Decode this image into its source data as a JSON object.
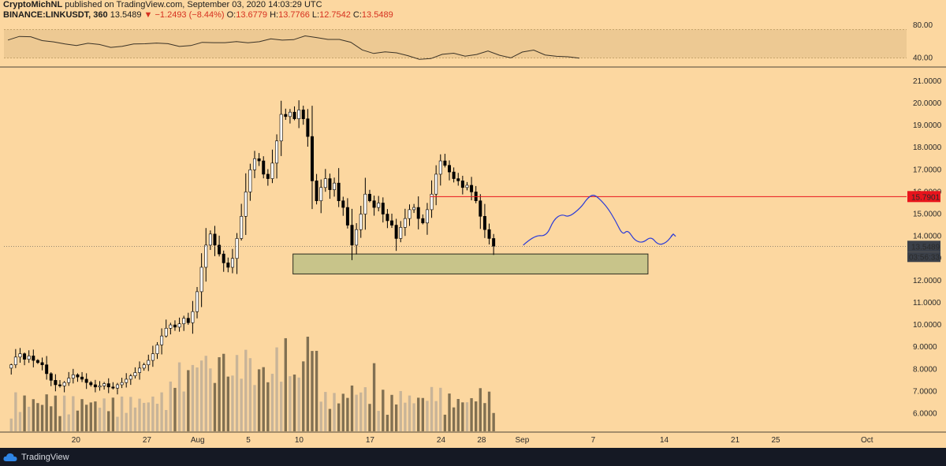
{
  "header": {
    "author": "CryptoMichNL",
    "published_text": "published on TradingView.com, September 03, 2020 14:03:29 UTC",
    "symbol": "BINANCE:LINKUSDT, 360",
    "last": "13.5489",
    "change_arrow": "▼",
    "change": "−1.2493 (−8.44%)",
    "o_label": "O:",
    "o_val": "13.6779",
    "h_label": "H:",
    "h_val": "13.7766",
    "l_label": "L:",
    "l_val": "12.7542",
    "c_label": "C:",
    "c_val": "13.5489"
  },
  "footer": {
    "brand": "TradingView"
  },
  "colors": {
    "background": "#fcd7a0",
    "bull": "#ffffff",
    "bear": "#000000",
    "resistance": "#e8141c",
    "projection": "#2a3ad8",
    "support_zone": "#c8c48a",
    "price_tag": "#3b4049",
    "resistance_tag": "#e8141c"
  },
  "chart_data": [
    {
      "type": "line",
      "name": "oscillator",
      "ylim": [
        30,
        85
      ],
      "tick_labels": [
        "80.00",
        "40.00"
      ],
      "tick_values": [
        80,
        40
      ],
      "band": [
        40,
        75
      ],
      "x": [
        0,
        3,
        6,
        9,
        12,
        15,
        18,
        21,
        24,
        27,
        30,
        33,
        36,
        39,
        42,
        45,
        48,
        51,
        54,
        57,
        60,
        63,
        66,
        69,
        72,
        75
      ],
      "values": [
        62,
        66,
        60,
        55,
        57,
        54,
        58,
        57,
        56,
        58,
        61,
        59,
        63,
        66,
        64,
        58,
        47,
        45,
        40,
        43,
        44,
        47,
        42,
        48,
        44,
        38
      ]
    },
    {
      "type": "candlestick",
      "ylim": [
        5.2,
        21.6
      ],
      "tick_labels": [
        "21.0000",
        "20.0000",
        "19.0000",
        "18.0000",
        "17.0000",
        "16.0000",
        "15.0000",
        "14.0000",
        "13.0000",
        "12.0000",
        "11.0000",
        "10.0000",
        "9.0000",
        "8.0000",
        "7.0000",
        "6.0000"
      ],
      "tick_values": [
        21,
        20,
        19,
        18,
        17,
        16,
        15,
        14,
        13,
        12,
        11,
        10,
        9,
        8,
        7,
        6
      ],
      "x_tick_labels": [
        "20",
        "27",
        "Aug",
        "5",
        "10",
        "17",
        "24",
        "28",
        "Sep",
        "7",
        "14",
        "21",
        "25",
        "Oct"
      ],
      "x_tick_positions": [
        1.6,
        8.6,
        13.6,
        18.6,
        23.6,
        30.6,
        37.6,
        41.6,
        45.6,
        52.6,
        59.6,
        66.6,
        70.6,
        79.6
      ],
      "x_range": [
        -5.5,
        83.5
      ],
      "close_series": [
        8.2,
        8.55,
        8.7,
        8.45,
        8.6,
        8.4,
        8.3,
        8.2,
        7.8,
        7.5,
        7.3,
        7.25,
        7.4,
        7.6,
        7.75,
        7.65,
        7.55,
        7.4,
        7.3,
        7.2,
        7.25,
        7.35,
        7.2,
        7.15,
        7.3,
        7.4,
        7.55,
        7.7,
        7.85,
        8.05,
        8.2,
        8.4,
        8.7,
        9.1,
        9.5,
        9.85,
        10.0,
        9.9,
        10.05,
        10.3,
        10.1,
        10.6,
        11.5,
        12.6,
        13.6,
        14.1,
        13.6,
        13.2,
        12.8,
        12.6,
        13.0,
        13.9,
        14.9,
        16.0,
        17.0,
        17.5,
        17.4,
        16.8,
        16.6,
        17.3,
        18.3,
        19.5,
        19.4,
        19.6,
        19.3,
        19.7,
        19.3,
        18.5,
        16.5,
        15.6,
        16.2,
        16.6,
        16.1,
        16.4,
        15.6,
        15.3,
        14.5,
        13.6,
        14.3,
        15.0,
        15.9,
        15.6,
        15.3,
        15.5,
        15.0,
        14.7,
        14.5,
        13.9,
        14.4,
        14.8,
        15.2,
        15.3,
        14.8,
        14.6,
        15.2,
        15.9,
        16.8,
        17.4,
        17.2,
        16.9,
        16.6,
        16.5,
        16.2,
        16.3,
        16.0,
        15.6,
        14.9,
        14.3,
        13.9,
        13.5489
      ],
      "support_zone": [
        12.3,
        13.2
      ],
      "resistance": 15.7901,
      "projection_path": [
        [
          45.7,
          13.6
        ],
        [
          46.8,
          14.05
        ],
        [
          48.0,
          14.0
        ],
        [
          48.7,
          14.75
        ],
        [
          49.5,
          15.0
        ],
        [
          50.2,
          14.85
        ],
        [
          51.4,
          15.3
        ],
        [
          52.0,
          15.7
        ],
        [
          52.6,
          15.9
        ],
        [
          53.2,
          15.7
        ],
        [
          54.0,
          15.3
        ],
        [
          54.8,
          14.7
        ],
        [
          55.5,
          14.05
        ],
        [
          56.0,
          14.3
        ],
        [
          56.7,
          13.8
        ],
        [
          57.5,
          13.7
        ],
        [
          58.3,
          14.0
        ],
        [
          59.0,
          13.6
        ],
        [
          59.8,
          13.7
        ],
        [
          60.5,
          14.1
        ]
      ],
      "price_labels": {
        "resistance": "15.7901",
        "last": "13.5489",
        "countdown": "03:56:33"
      }
    }
  ]
}
